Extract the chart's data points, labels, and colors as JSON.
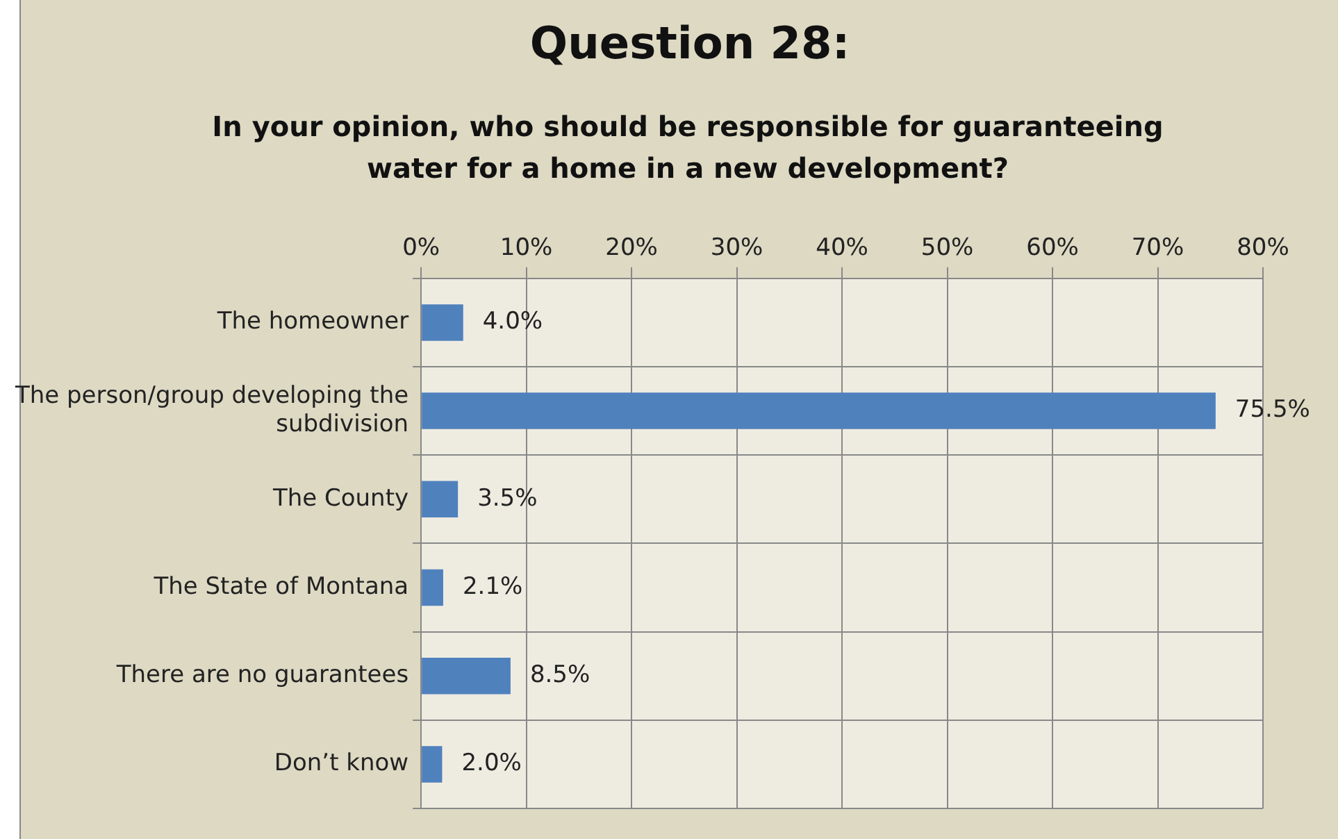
{
  "chart_data": {
    "type": "bar",
    "orientation": "horizontal",
    "title": "Question 28:",
    "subtitle": "In your opinion, who should be responsible for guaranteeing water for a home in a new development?",
    "categories": [
      "The homeowner",
      "The person/group developing the subdivision",
      "The County",
      "The State of Montana",
      "There are no guarantees",
      "Don’t know"
    ],
    "values": [
      4.0,
      75.5,
      3.5,
      2.1,
      8.5,
      2.0
    ],
    "value_labels": [
      "4.0%",
      "75.5%",
      "3.5%",
      "2.1%",
      "8.5%",
      "2.0%"
    ],
    "color": "#4f81bd",
    "xlim": [
      0,
      80
    ],
    "xticks": [
      {
        "value": 0,
        "label": "0%"
      },
      {
        "value": 10,
        "label": "10%"
      },
      {
        "value": 20,
        "label": "20%"
      },
      {
        "value": 30,
        "label": "30%"
      },
      {
        "value": 40,
        "label": "40%"
      },
      {
        "value": 50,
        "label": "50%"
      },
      {
        "value": 60,
        "label": "60%"
      },
      {
        "value": 70,
        "label": "70%"
      },
      {
        "value": 80,
        "label": "80%"
      }
    ],
    "grid": true,
    "legend": false
  }
}
